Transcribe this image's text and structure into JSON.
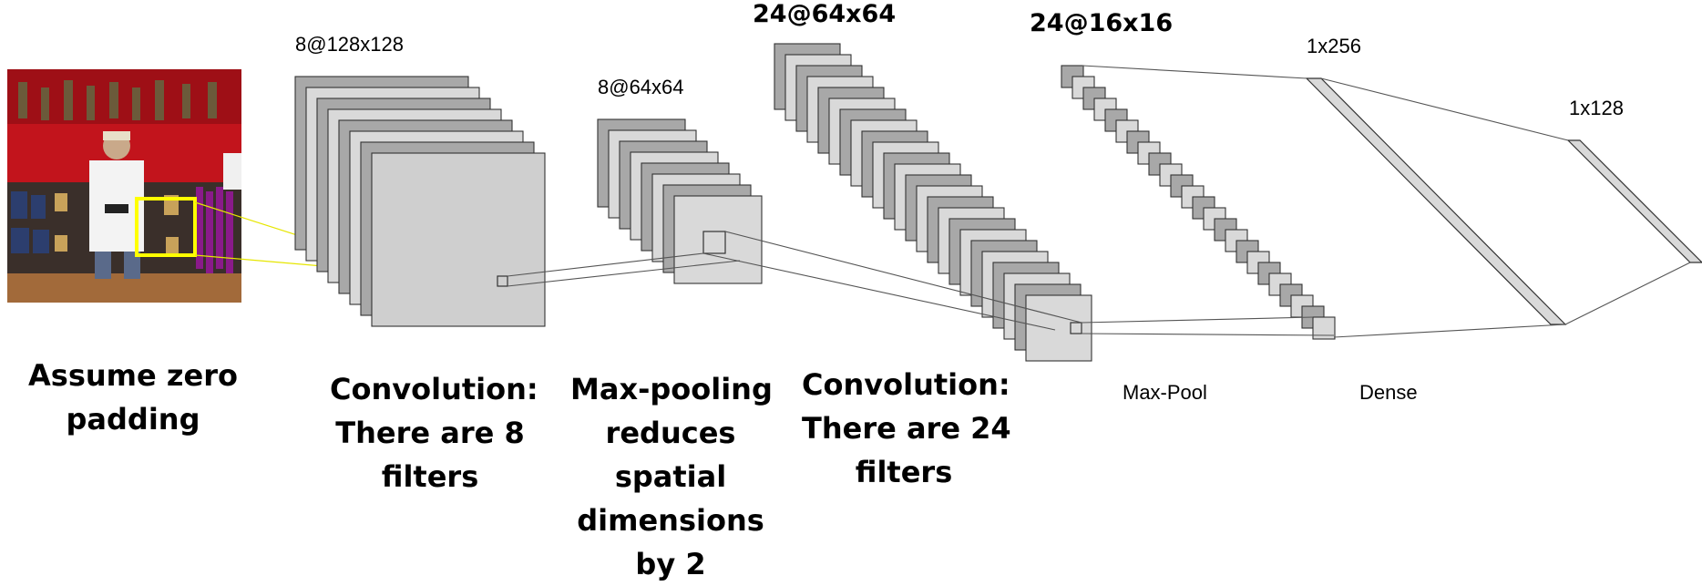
{
  "layers": {
    "input": {
      "caption_lines": [
        "Assume zero",
        "padding"
      ]
    },
    "conv1": {
      "dims": "8@128x128",
      "caption_lines": [
        "Convolution:",
        "There are 8",
        "filters"
      ]
    },
    "pool1": {
      "dims": "8@64x64",
      "caption_lines": [
        "Max-pooling",
        "reduces",
        "spatial",
        "dimensions",
        "by 2"
      ]
    },
    "conv2": {
      "dims": "24@64x64",
      "caption_lines": [
        "Convolution:",
        "There are 24",
        "filters"
      ]
    },
    "pool2": {
      "dims": "24@16x16",
      "caption": "Max-Pool"
    },
    "dense1": {
      "dims": "1x256",
      "caption": "Dense"
    },
    "dense2": {
      "dims": "1x128"
    }
  },
  "colors": {
    "dark_map": "#a8a8a8",
    "light_map": "#d9d9d9",
    "front_map": "#cfcfcf",
    "receptive_field": "#ffff00",
    "edge": "#333333"
  }
}
